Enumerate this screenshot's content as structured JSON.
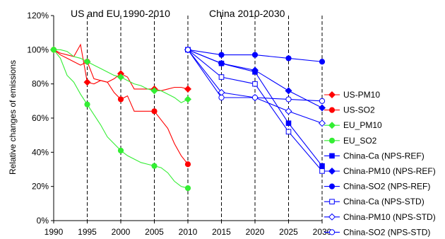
{
  "chart_data": {
    "type": "line",
    "title": "",
    "xlabel": "",
    "ylabel": "Relative changes of emissions",
    "xlim": [
      1990,
      2030
    ],
    "ylim": [
      0,
      120
    ],
    "x_ticks": [
      "1990",
      "1995",
      "2000",
      "2005",
      "2010",
      "2015",
      "2020",
      "2025",
      "2030"
    ],
    "y_ticks": [
      "0%",
      "20%",
      "40%",
      "60%",
      "80%",
      "100%",
      "120%"
    ],
    "panel_titles": [
      "US and EU 1990-2010",
      "China 2010-2030"
    ],
    "dashed_verticals": [
      1995,
      2000,
      2005,
      2010,
      2015,
      2020,
      2025,
      2030
    ],
    "legend_position": "right",
    "series": [
      {
        "name": "US-PM10",
        "color": "#ff0000",
        "marker": "diamond",
        "filled": true,
        "x": [
          1990,
          1991,
          1992,
          1993,
          1994,
          1995,
          1996,
          1997,
          1998,
          1999,
          2000,
          2001,
          2002,
          2003,
          2004,
          2005,
          2006,
          2007,
          2008,
          2009,
          2010
        ],
        "values": [
          100,
          98,
          97,
          96,
          103,
          81,
          80,
          82,
          81,
          83,
          86,
          84,
          77,
          77,
          77,
          77,
          76,
          77,
          78,
          78,
          77
        ],
        "marked": [
          1990,
          1995,
          2000,
          2005,
          2010
        ]
      },
      {
        "name": "US-SO2",
        "color": "#ff0000",
        "marker": "circle",
        "filled": true,
        "x": [
          1990,
          1991,
          1992,
          1993,
          1994,
          1995,
          1996,
          1997,
          1998,
          1999,
          2000,
          2001,
          2002,
          2003,
          2004,
          2005,
          2006,
          2007,
          2008,
          2009,
          2010
        ],
        "values": [
          100,
          97,
          95,
          93,
          91,
          93,
          83,
          82,
          81,
          75,
          71,
          73,
          64,
          64,
          64,
          64,
          59,
          54,
          45,
          38,
          33
        ],
        "marked": [
          1990,
          1995,
          2000,
          2005,
          2010
        ]
      },
      {
        "name": "EU_PM10",
        "color": "#33ee33",
        "marker": "diamond",
        "filled": true,
        "x": [
          1990,
          1991,
          1992,
          1993,
          1994,
          1995,
          1996,
          1997,
          1998,
          1999,
          2000,
          2001,
          2002,
          2003,
          2004,
          2005,
          2006,
          2007,
          2008,
          2009,
          2010
        ],
        "values": [
          100,
          100,
          99,
          96,
          95,
          93,
          91,
          89,
          87,
          85,
          84,
          82,
          80,
          79,
          77,
          76,
          76,
          74,
          72,
          69,
          71
        ],
        "marked": [
          1990,
          1995,
          2000,
          2005,
          2010
        ]
      },
      {
        "name": "EU_SO2",
        "color": "#33ee33",
        "marker": "circle",
        "filled": true,
        "x": [
          1990,
          1991,
          1992,
          1993,
          1994,
          1995,
          1996,
          1997,
          1998,
          1999,
          2000,
          2001,
          2002,
          2003,
          2004,
          2005,
          2006,
          2007,
          2008,
          2009,
          2010
        ],
        "values": [
          100,
          95,
          85,
          81,
          74,
          68,
          62,
          56,
          49,
          45,
          41,
          38,
          36,
          34,
          33,
          32,
          31,
          28,
          23,
          20,
          19
        ],
        "marked": [
          1990,
          1995,
          2000,
          2005,
          2010
        ]
      },
      {
        "name": "China-Ca (NPS-REF)",
        "color": "#0000ff",
        "marker": "square",
        "filled": true,
        "x": [
          2010,
          2015,
          2020,
          2025,
          2030
        ],
        "values": [
          100,
          92,
          87,
          57,
          32
        ],
        "marked": [
          2010,
          2015,
          2020,
          2025,
          2030
        ]
      },
      {
        "name": "China-PM10 (NPS-REF)",
        "color": "#0000ff",
        "marker": "diamond",
        "filled": true,
        "x": [
          2010,
          2015,
          2020,
          2025,
          2030
        ],
        "values": [
          100,
          92,
          88,
          76,
          66
        ],
        "marked": [
          2010,
          2015,
          2020,
          2025,
          2030
        ]
      },
      {
        "name": "China-SO2 (NPS-REF)",
        "color": "#0000ff",
        "marker": "circle",
        "filled": true,
        "x": [
          2010,
          2015,
          2020,
          2025,
          2030
        ],
        "values": [
          100,
          97,
          97,
          95,
          93
        ],
        "marked": [
          2010,
          2015,
          2020,
          2025,
          2030
        ]
      },
      {
        "name": "China-Ca (NPS-STD)",
        "color": "#0000ff",
        "marker": "square",
        "filled": false,
        "x": [
          2010,
          2015,
          2020,
          2025,
          2030
        ],
        "values": [
          100,
          84,
          80,
          52,
          29
        ],
        "marked": [
          2010,
          2015,
          2020,
          2025,
          2030
        ]
      },
      {
        "name": "China-PM10 (NPS-STD)",
        "color": "#0000ff",
        "marker": "diamond",
        "filled": false,
        "x": [
          2010,
          2015,
          2020,
          2025,
          2030
        ],
        "values": [
          100,
          75,
          72,
          64,
          57
        ],
        "marked": [
          2010,
          2015,
          2020,
          2025,
          2030
        ]
      },
      {
        "name": "China-SO2 (NPS-STD)",
        "color": "#0000ff",
        "marker": "circle",
        "filled": false,
        "x": [
          2010,
          2015,
          2020,
          2025,
          2030
        ],
        "values": [
          100,
          72,
          72,
          71,
          70
        ],
        "marked": [
          2010,
          2015,
          2020,
          2025,
          2030
        ]
      }
    ]
  }
}
